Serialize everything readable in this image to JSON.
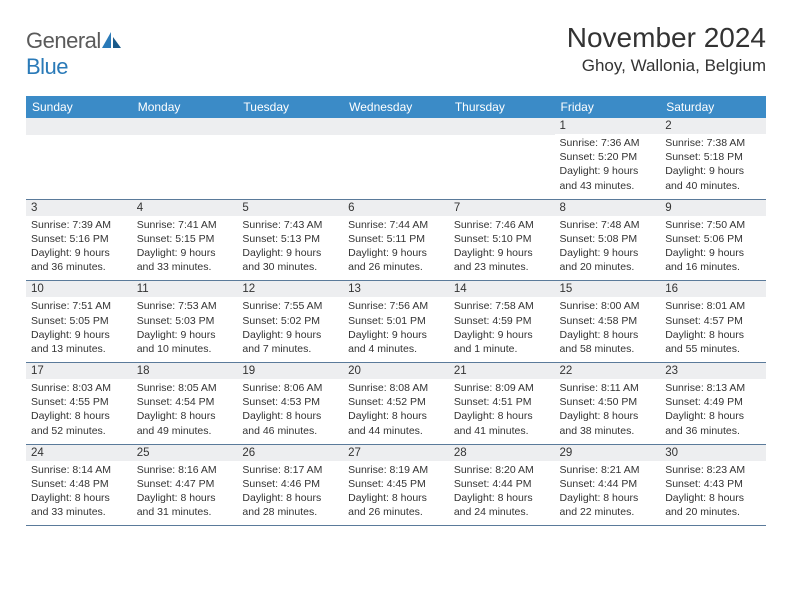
{
  "logo": {
    "text_general": "General",
    "text_blue": "Blue"
  },
  "title": "November 2024",
  "location": "Ghoy, Wallonia, Belgium",
  "colors": {
    "header_bg": "#3b8bc7",
    "header_text": "#ffffff",
    "daynum_bg": "#edeef0",
    "border": "#5a7a9a",
    "body_text": "#333333",
    "logo_gray": "#5a5a5a",
    "logo_blue": "#2a7ab8"
  },
  "day_headers": [
    "Sunday",
    "Monday",
    "Tuesday",
    "Wednesday",
    "Thursday",
    "Friday",
    "Saturday"
  ],
  "weeks": [
    [
      {
        "empty": true
      },
      {
        "empty": true
      },
      {
        "empty": true
      },
      {
        "empty": true
      },
      {
        "empty": true
      },
      {
        "day": "1",
        "sunrise": "Sunrise: 7:36 AM",
        "sunset": "Sunset: 5:20 PM",
        "daylight": "Daylight: 9 hours and 43 minutes."
      },
      {
        "day": "2",
        "sunrise": "Sunrise: 7:38 AM",
        "sunset": "Sunset: 5:18 PM",
        "daylight": "Daylight: 9 hours and 40 minutes."
      }
    ],
    [
      {
        "day": "3",
        "sunrise": "Sunrise: 7:39 AM",
        "sunset": "Sunset: 5:16 PM",
        "daylight": "Daylight: 9 hours and 36 minutes."
      },
      {
        "day": "4",
        "sunrise": "Sunrise: 7:41 AM",
        "sunset": "Sunset: 5:15 PM",
        "daylight": "Daylight: 9 hours and 33 minutes."
      },
      {
        "day": "5",
        "sunrise": "Sunrise: 7:43 AM",
        "sunset": "Sunset: 5:13 PM",
        "daylight": "Daylight: 9 hours and 30 minutes."
      },
      {
        "day": "6",
        "sunrise": "Sunrise: 7:44 AM",
        "sunset": "Sunset: 5:11 PM",
        "daylight": "Daylight: 9 hours and 26 minutes."
      },
      {
        "day": "7",
        "sunrise": "Sunrise: 7:46 AM",
        "sunset": "Sunset: 5:10 PM",
        "daylight": "Daylight: 9 hours and 23 minutes."
      },
      {
        "day": "8",
        "sunrise": "Sunrise: 7:48 AM",
        "sunset": "Sunset: 5:08 PM",
        "daylight": "Daylight: 9 hours and 20 minutes."
      },
      {
        "day": "9",
        "sunrise": "Sunrise: 7:50 AM",
        "sunset": "Sunset: 5:06 PM",
        "daylight": "Daylight: 9 hours and 16 minutes."
      }
    ],
    [
      {
        "day": "10",
        "sunrise": "Sunrise: 7:51 AM",
        "sunset": "Sunset: 5:05 PM",
        "daylight": "Daylight: 9 hours and 13 minutes."
      },
      {
        "day": "11",
        "sunrise": "Sunrise: 7:53 AM",
        "sunset": "Sunset: 5:03 PM",
        "daylight": "Daylight: 9 hours and 10 minutes."
      },
      {
        "day": "12",
        "sunrise": "Sunrise: 7:55 AM",
        "sunset": "Sunset: 5:02 PM",
        "daylight": "Daylight: 9 hours and 7 minutes."
      },
      {
        "day": "13",
        "sunrise": "Sunrise: 7:56 AM",
        "sunset": "Sunset: 5:01 PM",
        "daylight": "Daylight: 9 hours and 4 minutes."
      },
      {
        "day": "14",
        "sunrise": "Sunrise: 7:58 AM",
        "sunset": "Sunset: 4:59 PM",
        "daylight": "Daylight: 9 hours and 1 minute."
      },
      {
        "day": "15",
        "sunrise": "Sunrise: 8:00 AM",
        "sunset": "Sunset: 4:58 PM",
        "daylight": "Daylight: 8 hours and 58 minutes."
      },
      {
        "day": "16",
        "sunrise": "Sunrise: 8:01 AM",
        "sunset": "Sunset: 4:57 PM",
        "daylight": "Daylight: 8 hours and 55 minutes."
      }
    ],
    [
      {
        "day": "17",
        "sunrise": "Sunrise: 8:03 AM",
        "sunset": "Sunset: 4:55 PM",
        "daylight": "Daylight: 8 hours and 52 minutes."
      },
      {
        "day": "18",
        "sunrise": "Sunrise: 8:05 AM",
        "sunset": "Sunset: 4:54 PM",
        "daylight": "Daylight: 8 hours and 49 minutes."
      },
      {
        "day": "19",
        "sunrise": "Sunrise: 8:06 AM",
        "sunset": "Sunset: 4:53 PM",
        "daylight": "Daylight: 8 hours and 46 minutes."
      },
      {
        "day": "20",
        "sunrise": "Sunrise: 8:08 AM",
        "sunset": "Sunset: 4:52 PM",
        "daylight": "Daylight: 8 hours and 44 minutes."
      },
      {
        "day": "21",
        "sunrise": "Sunrise: 8:09 AM",
        "sunset": "Sunset: 4:51 PM",
        "daylight": "Daylight: 8 hours and 41 minutes."
      },
      {
        "day": "22",
        "sunrise": "Sunrise: 8:11 AM",
        "sunset": "Sunset: 4:50 PM",
        "daylight": "Daylight: 8 hours and 38 minutes."
      },
      {
        "day": "23",
        "sunrise": "Sunrise: 8:13 AM",
        "sunset": "Sunset: 4:49 PM",
        "daylight": "Daylight: 8 hours and 36 minutes."
      }
    ],
    [
      {
        "day": "24",
        "sunrise": "Sunrise: 8:14 AM",
        "sunset": "Sunset: 4:48 PM",
        "daylight": "Daylight: 8 hours and 33 minutes."
      },
      {
        "day": "25",
        "sunrise": "Sunrise: 8:16 AM",
        "sunset": "Sunset: 4:47 PM",
        "daylight": "Daylight: 8 hours and 31 minutes."
      },
      {
        "day": "26",
        "sunrise": "Sunrise: 8:17 AM",
        "sunset": "Sunset: 4:46 PM",
        "daylight": "Daylight: 8 hours and 28 minutes."
      },
      {
        "day": "27",
        "sunrise": "Sunrise: 8:19 AM",
        "sunset": "Sunset: 4:45 PM",
        "daylight": "Daylight: 8 hours and 26 minutes."
      },
      {
        "day": "28",
        "sunrise": "Sunrise: 8:20 AM",
        "sunset": "Sunset: 4:44 PM",
        "daylight": "Daylight: 8 hours and 24 minutes."
      },
      {
        "day": "29",
        "sunrise": "Sunrise: 8:21 AM",
        "sunset": "Sunset: 4:44 PM",
        "daylight": "Daylight: 8 hours and 22 minutes."
      },
      {
        "day": "30",
        "sunrise": "Sunrise: 8:23 AM",
        "sunset": "Sunset: 4:43 PM",
        "daylight": "Daylight: 8 hours and 20 minutes."
      }
    ]
  ]
}
